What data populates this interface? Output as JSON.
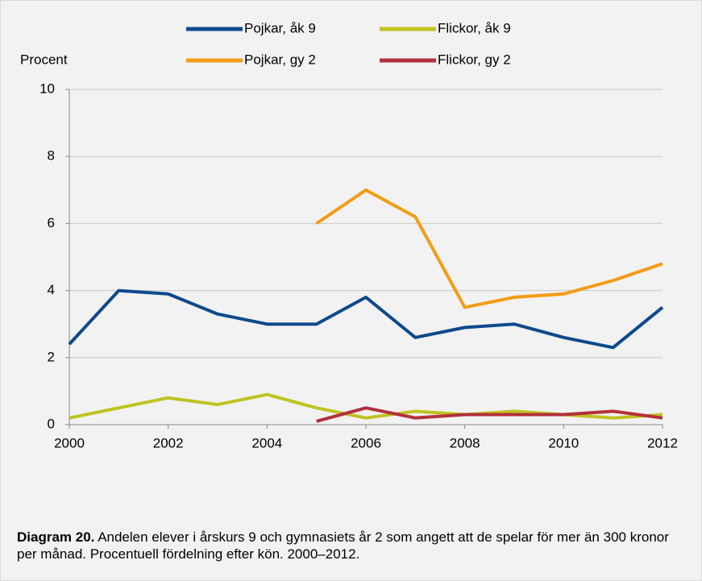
{
  "chart_data": {
    "type": "line",
    "ylabel": "Procent",
    "x": [
      2000,
      2001,
      2002,
      2003,
      2004,
      2005,
      2006,
      2007,
      2008,
      2009,
      2010,
      2011,
      2012
    ],
    "xlim": [
      2000,
      2012
    ],
    "xticks": [
      2000,
      2002,
      2004,
      2006,
      2008,
      2010,
      2012
    ],
    "ylim": [
      0,
      10
    ],
    "yticks": [
      0,
      2,
      4,
      6,
      8,
      10
    ],
    "grid": true,
    "series": [
      {
        "name": "Pojkar, åk 9",
        "color": "#0d4a8c",
        "values": [
          2.4,
          4.0,
          3.9,
          3.3,
          3.0,
          3.0,
          3.8,
          2.6,
          2.9,
          3.0,
          2.6,
          2.3,
          3.5
        ]
      },
      {
        "name": "Flickor, åk 9",
        "color": "#bfc320",
        "values": [
          0.2,
          0.5,
          0.8,
          0.6,
          0.9,
          0.5,
          0.2,
          0.4,
          0.3,
          0.4,
          0.3,
          0.2,
          0.3
        ]
      },
      {
        "name": "Pojkar, gy 2",
        "color": "#f39c16",
        "values": [
          null,
          null,
          null,
          null,
          null,
          6.0,
          7.0,
          6.2,
          3.5,
          3.8,
          3.9,
          4.3,
          4.8
        ]
      },
      {
        "name": "Flickor, gy 2",
        "color": "#b3303c",
        "values": [
          null,
          null,
          null,
          null,
          null,
          0.1,
          0.5,
          0.2,
          0.3,
          0.3,
          0.3,
          0.4,
          0.2
        ]
      }
    ],
    "caption_label": "Diagram 20.",
    "caption_text": "Andelen elever i årskurs 9 och gymnasiets år 2 som angett att de spelar för mer än 300 kronor per månad. Procentuell fördelning efter kön. 2000–2012."
  }
}
